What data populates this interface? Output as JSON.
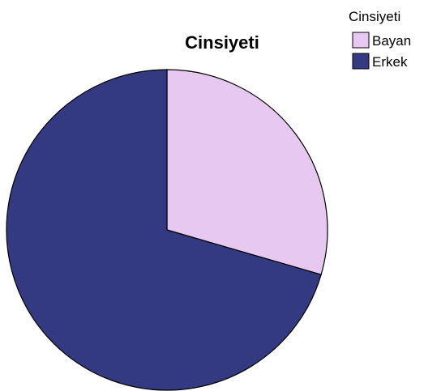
{
  "chart_data": {
    "type": "pie",
    "title": "Cinsiyeti",
    "legend_title": "Cinsiyeti",
    "legend_position": "top-right",
    "categories": [
      "Bayan",
      "Erkek"
    ],
    "values": [
      29.5,
      70.5
    ],
    "colors": [
      "#e6c8f0",
      "#333a82"
    ],
    "start_angle_deg": 90,
    "direction": "clockwise"
  }
}
